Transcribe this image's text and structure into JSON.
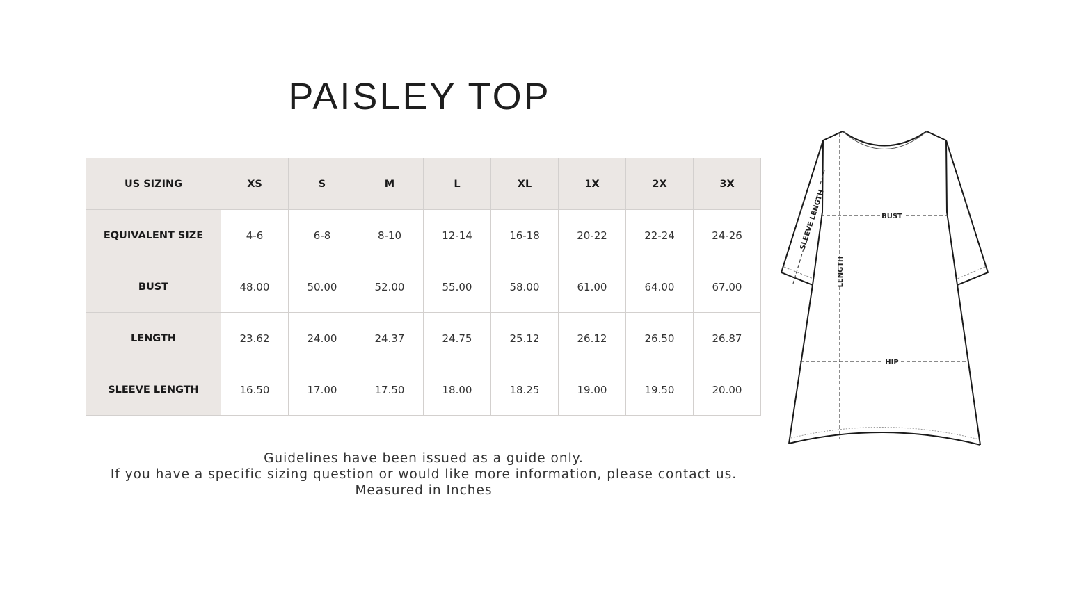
{
  "title": "PAISLEY TOP",
  "table": {
    "header": [
      "US SIZING",
      "XS",
      "S",
      "M",
      "L",
      "XL",
      "1X",
      "2X",
      "3X"
    ],
    "rows": [
      {
        "label": "EQUIVALENT SIZE",
        "values": [
          "4-6",
          "6-8",
          "8-10",
          "12-14",
          "16-18",
          "20-22",
          "22-24",
          "24-26"
        ]
      },
      {
        "label": "BUST",
        "values": [
          "48.00",
          "50.00",
          "52.00",
          "55.00",
          "58.00",
          "61.00",
          "64.00",
          "67.00"
        ]
      },
      {
        "label": "LENGTH",
        "values": [
          "23.62",
          "24.00",
          "24.37",
          "24.75",
          "25.12",
          "26.12",
          "26.50",
          "26.87"
        ]
      },
      {
        "label": "SLEEVE LENGTH",
        "values": [
          "16.50",
          "17.00",
          "17.50",
          "18.00",
          "18.25",
          "19.00",
          "19.50",
          "20.00"
        ]
      }
    ]
  },
  "diagram": {
    "labels": {
      "sleeve_length": "SLEEVE LENGTH",
      "length": "LENGTH",
      "bust": "BUST",
      "hip": "HIP"
    }
  },
  "notes": [
    "Guidelines have been issued as a guide only.",
    "If you have a specific sizing question or would like more information, please contact us.",
    "Measured in Inches"
  ],
  "colors": {
    "header_bg": "#ebe7e4",
    "border": "#d3d0ce",
    "text": "#222222"
  }
}
